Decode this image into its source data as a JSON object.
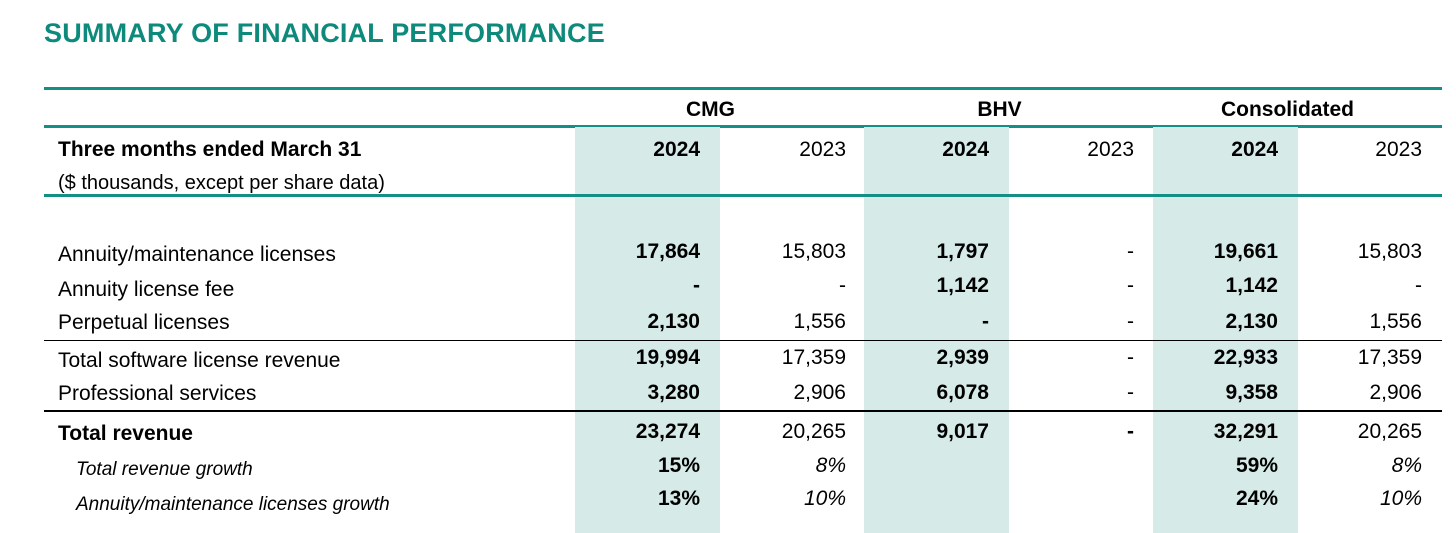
{
  "title": "SUMMARY OF FINANCIAL PERFORMANCE",
  "groups": {
    "cmg": "CMG",
    "bhv": "BHV",
    "consolidated": "Consolidated"
  },
  "header": {
    "period": "Three months ended March 31",
    "units": "($ thousands, except per share data)",
    "years": [
      "2024",
      "2023",
      "2024",
      "2023",
      "2024",
      "2023"
    ]
  },
  "colors": {
    "title": "#0e8a7c",
    "rule": "#138f86",
    "highlight": "#d6ebe8"
  },
  "rows": [
    {
      "label": "Annuity/maintenance licenses",
      "values": [
        "17,864",
        "15,803",
        "1,797",
        "-",
        "19,661",
        "15,803"
      ]
    },
    {
      "label": "Annuity license fee",
      "values": [
        "-",
        "-",
        "1,142",
        "-",
        "1,142",
        "-"
      ]
    },
    {
      "label": "Perpetual licenses",
      "values": [
        "2,130",
        "1,556",
        "-",
        "-",
        "2,130",
        "1,556"
      ]
    },
    {
      "label": "Total software license revenue",
      "values": [
        "19,994",
        "17,359",
        "2,939",
        "-",
        "22,933",
        "17,359"
      ]
    },
    {
      "label": "Professional services",
      "values": [
        "3,280",
        "2,906",
        "6,078",
        "-",
        "9,358",
        "2,906"
      ]
    },
    {
      "label": "Total revenue",
      "values": [
        "23,274",
        "20,265",
        "9,017",
        "-",
        "32,291",
        "20,265"
      ]
    },
    {
      "label": "Total revenue growth",
      "values": [
        "15%",
        "8%",
        "",
        "",
        "59%",
        "8%"
      ]
    },
    {
      "label": "Annuity/maintenance licenses growth",
      "values": [
        "13%",
        "10%",
        "",
        "",
        "24%",
        "10%"
      ]
    }
  ]
}
